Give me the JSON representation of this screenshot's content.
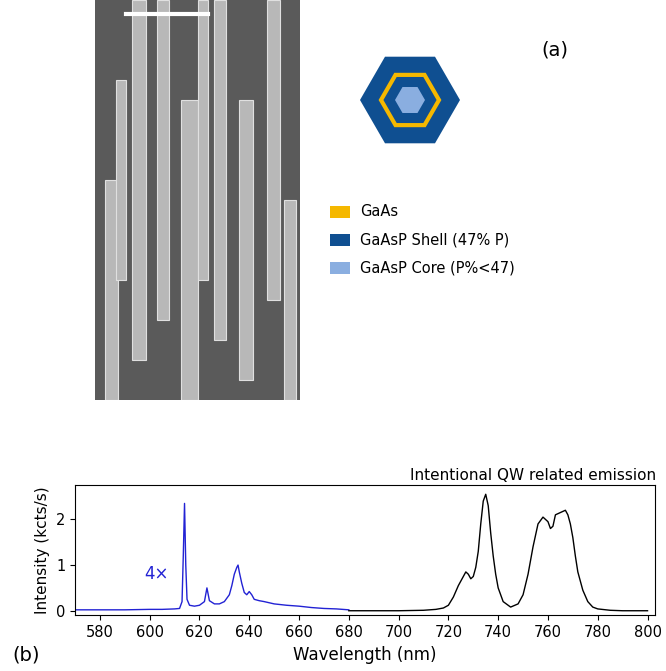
{
  "panel_a": {
    "label": "(a)",
    "legend": [
      {
        "label": "GaAs",
        "color": "#f5b800"
      },
      {
        "label": "GaAsP Shell (47% P)",
        "color": "#0f4f91"
      },
      {
        "label": "GaAsP Core (P%<47)",
        "color": "#8aaee0"
      }
    ]
  },
  "panel_b_label": "(b)",
  "chart_data": {
    "type": "line",
    "x_label": "Wavelength (nm)",
    "y_label": "Intensity (kcts/s)",
    "xlim": [
      570,
      803
    ],
    "ylim": [
      -0.1,
      2.75
    ],
    "xticks": [
      580,
      600,
      620,
      640,
      660,
      680,
      700,
      720,
      740,
      760,
      780,
      800
    ],
    "yticks": [
      0,
      1,
      2
    ],
    "annotations": [
      "4×",
      "Intentional QW related emission"
    ],
    "series": [
      {
        "color": "#2222d4",
        "x": [
          570,
          580,
          590,
          600,
          605,
          610,
          612,
          613,
          613.5,
          614,
          614.5,
          615,
          616,
          618,
          620,
          622,
          623,
          624,
          626,
          628,
          630,
          632,
          633,
          634,
          635,
          635.5,
          636,
          637,
          638,
          639,
          640,
          641,
          642,
          644,
          646,
          650,
          655,
          660,
          665,
          670,
          675,
          680
        ],
        "values": [
          0.02,
          0.02,
          0.02,
          0.03,
          0.03,
          0.04,
          0.05,
          0.2,
          1.2,
          2.35,
          1.0,
          0.25,
          0.12,
          0.1,
          0.12,
          0.2,
          0.5,
          0.22,
          0.15,
          0.15,
          0.2,
          0.35,
          0.55,
          0.8,
          0.95,
          1.0,
          0.85,
          0.6,
          0.4,
          0.35,
          0.42,
          0.35,
          0.25,
          0.22,
          0.2,
          0.15,
          0.12,
          0.1,
          0.07,
          0.05,
          0.04,
          0.02
        ]
      },
      {
        "color": "#000000",
        "x": [
          680,
          690,
          700,
          710,
          715,
          718,
          720,
          722,
          724,
          726,
          727,
          728,
          729,
          730,
          731,
          732,
          733,
          734,
          735,
          736,
          737,
          738,
          739,
          740,
          742,
          745,
          748,
          750,
          752,
          754,
          756,
          758,
          759,
          760,
          761,
          762,
          763,
          765,
          767,
          768,
          769,
          770,
          771,
          772,
          774,
          776,
          778,
          780,
          785,
          790,
          800
        ],
        "values": [
          0.0,
          0.0,
          0.0,
          0.01,
          0.03,
          0.06,
          0.12,
          0.3,
          0.55,
          0.75,
          0.85,
          0.8,
          0.7,
          0.75,
          0.95,
          1.3,
          1.9,
          2.4,
          2.55,
          2.3,
          1.7,
          1.2,
          0.8,
          0.5,
          0.2,
          0.08,
          0.15,
          0.35,
          0.8,
          1.4,
          1.9,
          2.05,
          2.0,
          1.95,
          1.8,
          1.85,
          2.1,
          2.15,
          2.2,
          2.1,
          1.9,
          1.6,
          1.2,
          0.85,
          0.45,
          0.2,
          0.08,
          0.04,
          0.01,
          0.0,
          0.0
        ]
      }
    ]
  }
}
